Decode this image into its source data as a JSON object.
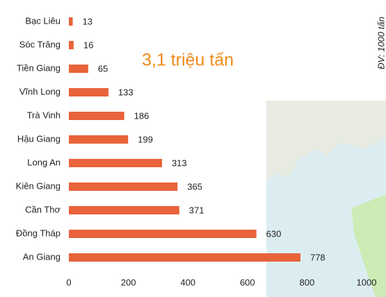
{
  "chart_data": {
    "type": "bar",
    "orientation": "horizontal",
    "title": "3,1 triệu tấn",
    "unit": "ĐV: 1000 tấn",
    "categories": [
      "Bạc Liêu",
      "Sóc Trăng",
      "Tiền Giang",
      "Vĩnh Long",
      "Trà Vinh",
      "Hậu Giang",
      "Long An",
      "Kiên Giang",
      "Cần Thơ",
      "Đồng Tháp",
      "An Giang"
    ],
    "values": [
      13,
      16,
      65,
      133,
      186,
      199,
      313,
      365,
      371,
      630,
      778
    ],
    "color": "#e8633a",
    "xlim": [
      0,
      1000
    ],
    "xticks": [
      0,
      200,
      400,
      600,
      800,
      1000
    ],
    "grid": false
  }
}
